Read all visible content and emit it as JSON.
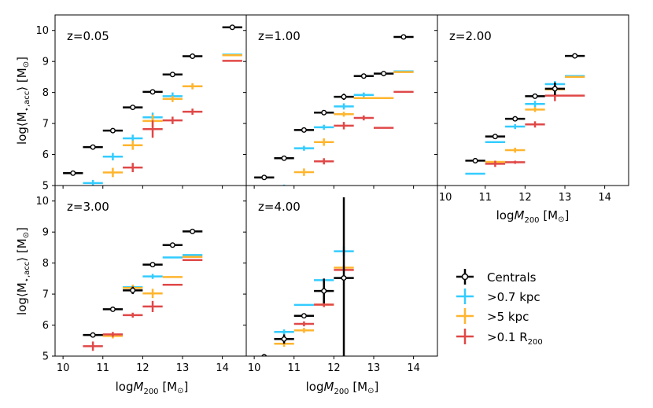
{
  "figure": {
    "ylabel": "log⟨M",
    "ylabel_sub": "⋆,acc",
    "ylabel_end": "⟩ [M",
    "ylabel_sun": "⊙",
    "ylabel_close": "]",
    "xlabel_main": "log",
    "xlabel_M": "M",
    "xlabel_sub": "200",
    "xlabel_unit": " [M",
    "xlabel_sun": "⊙",
    "xlabel_close": "]"
  },
  "legend": {
    "entries": [
      {
        "label": "Centrals",
        "color": "#000000"
      },
      {
        "label": ">0.7 kpc",
        "color": "#33ccff"
      },
      {
        "label": ">5 kpc",
        "color": "#ffb52e"
      },
      {
        "label": ">0.1 R",
        "sub": "200",
        "color": "#e04848"
      }
    ]
  },
  "chart_data": {
    "type": "scatter",
    "xlim": [
      9.8,
      14.6
    ],
    "ylim": [
      5,
      10.5
    ],
    "xticks": [
      10,
      11,
      12,
      13,
      14
    ],
    "yticks": [
      5,
      6,
      7,
      8,
      9,
      10
    ],
    "colors": {
      "centrals": "#000000",
      "kpc07": "#33ccff",
      "kpc5": "#ffb52e",
      "r200": "#e04848"
    },
    "panels": [
      {
        "label": "z=0.05",
        "series": [
          {
            "name": "Centrals",
            "key": "centrals",
            "points": [
              {
                "x": 10.25,
                "y": 5.4,
                "xerr": 0.25,
                "yerr": 0
              },
              {
                "x": 10.75,
                "y": 6.24,
                "xerr": 0.25,
                "yerr": 0
              },
              {
                "x": 11.25,
                "y": 6.77,
                "xerr": 0.25,
                "yerr": 0
              },
              {
                "x": 11.75,
                "y": 7.52,
                "xerr": 0.25,
                "yerr": 0
              },
              {
                "x": 12.25,
                "y": 8.02,
                "xerr": 0.25,
                "yerr": 0
              },
              {
                "x": 12.75,
                "y": 8.58,
                "xerr": 0.25,
                "yerr": 0
              },
              {
                "x": 13.25,
                "y": 9.17,
                "xerr": 0.25,
                "yerr": 0
              },
              {
                "x": 14.25,
                "y": 10.1,
                "xerr": 0.25,
                "yerr": 0
              }
            ]
          },
          {
            "name": ">0.7 kpc",
            "key": "kpc07",
            "points": [
              {
                "x": 10.75,
                "y": 5.08,
                "xerr": 0.25,
                "yerr": 0.1
              },
              {
                "x": 11.25,
                "y": 5.93,
                "xerr": 0.25,
                "yerr": 0.12
              },
              {
                "x": 11.75,
                "y": 6.52,
                "xerr": 0.25,
                "yerr": 0.12
              },
              {
                "x": 12.25,
                "y": 7.2,
                "xerr": 0.25,
                "yerr": 0.15
              },
              {
                "x": 12.75,
                "y": 7.88,
                "xerr": 0.25,
                "yerr": 0.12
              },
              {
                "x": 13.25,
                "y": 8.2,
                "xerr": 0.25,
                "yerr": 0.08
              },
              {
                "x": 14.25,
                "y": 9.22,
                "xerr": 0.25,
                "yerr": 0
              }
            ]
          },
          {
            "name": ">5 kpc",
            "key": "kpc5",
            "points": [
              {
                "x": 11.25,
                "y": 5.42,
                "xerr": 0.25,
                "yerr": 0.15
              },
              {
                "x": 11.75,
                "y": 6.3,
                "xerr": 0.25,
                "yerr": 0.15
              },
              {
                "x": 12.25,
                "y": 7.08,
                "xerr": 0.25,
                "yerr": 0.2
              },
              {
                "x": 12.75,
                "y": 7.79,
                "xerr": 0.25,
                "yerr": 0.1
              },
              {
                "x": 13.25,
                "y": 8.2,
                "xerr": 0.25,
                "yerr": 0.1
              },
              {
                "x": 14.25,
                "y": 9.2,
                "xerr": 0.25,
                "yerr": 0
              }
            ]
          },
          {
            "name": ">0.1 R200",
            "key": "r200",
            "points": [
              {
                "x": 11.75,
                "y": 5.58,
                "xerr": 0.25,
                "yerr": 0.15
              },
              {
                "x": 12.25,
                "y": 6.82,
                "xerr": 0.25,
                "yerr": 0.28
              },
              {
                "x": 12.75,
                "y": 7.1,
                "xerr": 0.25,
                "yerr": 0.12
              },
              {
                "x": 13.25,
                "y": 7.38,
                "xerr": 0.25,
                "yerr": 0.1
              },
              {
                "x": 14.25,
                "y": 9.02,
                "xerr": 0.25,
                "yerr": 0
              }
            ]
          }
        ]
      },
      {
        "label": "z=1.00",
        "series": [
          {
            "name": "Centrals",
            "key": "centrals",
            "points": [
              {
                "x": 10.25,
                "y": 5.26,
                "xerr": 0.25,
                "yerr": 0
              },
              {
                "x": 10.75,
                "y": 5.88,
                "xerr": 0.25,
                "yerr": 0
              },
              {
                "x": 11.25,
                "y": 6.79,
                "xerr": 0.25,
                "yerr": 0
              },
              {
                "x": 11.75,
                "y": 7.35,
                "xerr": 0.25,
                "yerr": 0
              },
              {
                "x": 12.25,
                "y": 7.86,
                "xerr": 0.25,
                "yerr": 0.1
              },
              {
                "x": 12.75,
                "y": 8.53,
                "xerr": 0.25,
                "yerr": 0
              },
              {
                "x": 13.25,
                "y": 8.61,
                "xerr": 0.25,
                "yerr": 0
              },
              {
                "x": 13.75,
                "y": 9.79,
                "xerr": 0.25,
                "yerr": 0
              }
            ]
          },
          {
            "name": ">0.7 kpc",
            "key": "kpc07",
            "points": [
              {
                "x": 10.75,
                "y": 4.98,
                "xerr": 0.25,
                "yerr": 0.05
              },
              {
                "x": 11.25,
                "y": 6.2,
                "xerr": 0.25,
                "yerr": 0.08
              },
              {
                "x": 11.75,
                "y": 6.88,
                "xerr": 0.25,
                "yerr": 0.08
              },
              {
                "x": 12.25,
                "y": 7.55,
                "xerr": 0.25,
                "yerr": 0.1
              },
              {
                "x": 12.75,
                "y": 7.92,
                "xerr": 0.25,
                "yerr": 0.08
              },
              {
                "x": 13.75,
                "y": 8.68,
                "xerr": 0.25,
                "yerr": 0
              }
            ]
          },
          {
            "name": ">5 kpc",
            "key": "kpc5",
            "points": [
              {
                "x": 11.25,
                "y": 5.43,
                "xerr": 0.25,
                "yerr": 0.12
              },
              {
                "x": 11.75,
                "y": 6.4,
                "xerr": 0.25,
                "yerr": 0.12
              },
              {
                "x": 12.25,
                "y": 7.3,
                "xerr": 0.25,
                "yerr": 0.08
              },
              {
                "x": 12.75,
                "y": 7.82,
                "xerr": 0.25,
                "yerr": 0
              },
              {
                "x": 13.25,
                "y": 7.82,
                "xerr": 0.25,
                "yerr": 0
              },
              {
                "x": 13.75,
                "y": 8.66,
                "xerr": 0.25,
                "yerr": 0
              }
            ]
          },
          {
            "name": ">0.1 R200",
            "key": "r200",
            "points": [
              {
                "x": 11.75,
                "y": 5.78,
                "xerr": 0.25,
                "yerr": 0.1
              },
              {
                "x": 12.25,
                "y": 6.93,
                "xerr": 0.25,
                "yerr": 0.12
              },
              {
                "x": 12.75,
                "y": 7.18,
                "xerr": 0.25,
                "yerr": 0.08
              },
              {
                "x": 13.25,
                "y": 6.86,
                "xerr": 0.25,
                "yerr": 0
              },
              {
                "x": 13.75,
                "y": 8.02,
                "xerr": 0.25,
                "yerr": 0
              }
            ]
          }
        ]
      },
      {
        "label": "z=2.00",
        "series": [
          {
            "name": "Centrals",
            "key": "centrals",
            "points": [
              {
                "x": 10.75,
                "y": 5.8,
                "xerr": 0.25,
                "yerr": 0
              },
              {
                "x": 11.25,
                "y": 6.58,
                "xerr": 0.25,
                "yerr": 0
              },
              {
                "x": 11.75,
                "y": 7.15,
                "xerr": 0.25,
                "yerr": 0
              },
              {
                "x": 12.25,
                "y": 7.88,
                "xerr": 0.25,
                "yerr": 0
              },
              {
                "x": 12.75,
                "y": 8.12,
                "xerr": 0.25,
                "yerr": 0.2
              },
              {
                "x": 13.25,
                "y": 9.18,
                "xerr": 0.25,
                "yerr": 0
              }
            ]
          },
          {
            "name": ">0.7 kpc",
            "key": "kpc07",
            "points": [
              {
                "x": 10.75,
                "y": 5.38,
                "xerr": 0.25,
                "yerr": 0
              },
              {
                "x": 11.25,
                "y": 6.4,
                "xerr": 0.25,
                "yerr": 0
              },
              {
                "x": 11.75,
                "y": 6.9,
                "xerr": 0.25,
                "yerr": 0.08
              },
              {
                "x": 12.25,
                "y": 7.63,
                "xerr": 0.25,
                "yerr": 0.1
              },
              {
                "x": 12.75,
                "y": 8.27,
                "xerr": 0.25,
                "yerr": 0.1
              },
              {
                "x": 13.25,
                "y": 8.53,
                "xerr": 0.25,
                "yerr": 0
              }
            ]
          },
          {
            "name": ">5 kpc",
            "key": "kpc5",
            "points": [
              {
                "x": 11.25,
                "y": 5.76,
                "xerr": 0.25,
                "yerr": 0
              },
              {
                "x": 11.75,
                "y": 6.14,
                "xerr": 0.25,
                "yerr": 0.08
              },
              {
                "x": 12.25,
                "y": 7.45,
                "xerr": 0.25,
                "yerr": 0.08
              },
              {
                "x": 12.75,
                "y": 8.1,
                "xerr": 0.25,
                "yerr": 0.1
              },
              {
                "x": 13.25,
                "y": 8.5,
                "xerr": 0.25,
                "yerr": 0
              }
            ]
          },
          {
            "name": ">0.1 R200",
            "key": "r200",
            "points": [
              {
                "x": 11.25,
                "y": 5.7,
                "xerr": 0.25,
                "yerr": 0.1
              },
              {
                "x": 11.75,
                "y": 5.75,
                "xerr": 0.25,
                "yerr": 0.05
              },
              {
                "x": 12.25,
                "y": 6.97,
                "xerr": 0.25,
                "yerr": 0.1
              },
              {
                "x": 12.75,
                "y": 7.9,
                "xerr": 0.25,
                "yerr": 0.18
              },
              {
                "x": 13.25,
                "y": 7.9,
                "xerr": 0.25,
                "yerr": 0
              }
            ]
          }
        ]
      },
      {
        "label": "z=3.00",
        "series": [
          {
            "name": "Centrals",
            "key": "centrals",
            "points": [
              {
                "x": 10.75,
                "y": 5.68,
                "xerr": 0.25,
                "yerr": 0
              },
              {
                "x": 11.25,
                "y": 6.51,
                "xerr": 0.25,
                "yerr": 0
              },
              {
                "x": 11.75,
                "y": 7.12,
                "xerr": 0.25,
                "yerr": 0.12
              },
              {
                "x": 12.25,
                "y": 7.95,
                "xerr": 0.25,
                "yerr": 0
              },
              {
                "x": 12.75,
                "y": 8.58,
                "xerr": 0.25,
                "yerr": 0
              },
              {
                "x": 13.25,
                "y": 9.02,
                "xerr": 0.25,
                "yerr": 0
              }
            ]
          },
          {
            "name": ">0.7 kpc",
            "key": "kpc07",
            "points": [
              {
                "x": 11.25,
                "y": 5.68,
                "xerr": 0.25,
                "yerr": 0
              },
              {
                "x": 11.75,
                "y": 7.22,
                "xerr": 0.25,
                "yerr": 0.08
              },
              {
                "x": 12.25,
                "y": 7.57,
                "xerr": 0.25,
                "yerr": 0.08
              },
              {
                "x": 12.75,
                "y": 8.18,
                "xerr": 0.25,
                "yerr": 0
              },
              {
                "x": 13.25,
                "y": 8.26,
                "xerr": 0.25,
                "yerr": 0
              }
            ]
          },
          {
            "name": ">5 kpc",
            "key": "kpc5",
            "points": [
              {
                "x": 11.25,
                "y": 5.65,
                "xerr": 0.25,
                "yerr": 0.08
              },
              {
                "x": 11.75,
                "y": 7.2,
                "xerr": 0.25,
                "yerr": 0.1
              },
              {
                "x": 12.25,
                "y": 7.02,
                "xerr": 0.25,
                "yerr": 0.15
              },
              {
                "x": 12.75,
                "y": 7.55,
                "xerr": 0.25,
                "yerr": 0
              },
              {
                "x": 13.25,
                "y": 8.2,
                "xerr": 0.25,
                "yerr": 0
              }
            ]
          },
          {
            "name": ">0.1 R200",
            "key": "r200",
            "points": [
              {
                "x": 10.75,
                "y": 5.32,
                "xerr": 0.25,
                "yerr": 0.15
              },
              {
                "x": 11.25,
                "y": 5.7,
                "xerr": 0.25,
                "yerr": 0.08
              },
              {
                "x": 11.75,
                "y": 6.32,
                "xerr": 0.25,
                "yerr": 0.08
              },
              {
                "x": 12.25,
                "y": 6.6,
                "xerr": 0.25,
                "yerr": 0.18
              },
              {
                "x": 12.75,
                "y": 7.3,
                "xerr": 0.25,
                "yerr": 0
              },
              {
                "x": 13.25,
                "y": 8.1,
                "xerr": 0.25,
                "yerr": 0
              }
            ]
          }
        ]
      },
      {
        "label": "z=4.00",
        "series": [
          {
            "name": "Centrals",
            "key": "centrals",
            "points": [
              {
                "x": 10.25,
                "y": 4.98,
                "xerr": 0,
                "yerr": 0
              },
              {
                "x": 10.75,
                "y": 5.55,
                "xerr": 0.25,
                "yerr": 0.15
              },
              {
                "x": 11.25,
                "y": 6.3,
                "xerr": 0.25,
                "yerr": 0
              },
              {
                "x": 11.75,
                "y": 7.1,
                "xerr": 0.25,
                "yerr": 0.4
              },
              {
                "x": 12.25,
                "y": 7.52,
                "xerr": 0.25,
                "yerr": 2.6
              }
            ]
          },
          {
            "name": ">0.7 kpc",
            "key": "kpc07",
            "points": [
              {
                "x": 10.75,
                "y": 5.78,
                "xerr": 0.25,
                "yerr": 0.08
              },
              {
                "x": 11.25,
                "y": 6.65,
                "xerr": 0.25,
                "yerr": 0
              },
              {
                "x": 11.75,
                "y": 7.45,
                "xerr": 0.25,
                "yerr": 0
              },
              {
                "x": 12.25,
                "y": 8.38,
                "xerr": 0.25,
                "yerr": 0.15
              }
            ]
          },
          {
            "name": ">5 kpc",
            "key": "kpc5",
            "points": [
              {
                "x": 10.75,
                "y": 5.4,
                "xerr": 0.25,
                "yerr": 0.1
              },
              {
                "x": 11.25,
                "y": 5.83,
                "xerr": 0.25,
                "yerr": 0.08
              },
              {
                "x": 11.75,
                "y": 6.66,
                "xerr": 0.25,
                "yerr": 0
              },
              {
                "x": 12.25,
                "y": 7.85,
                "xerr": 0.25,
                "yerr": 0.08
              }
            ]
          },
          {
            "name": ">0.1 R200",
            "key": "r200",
            "points": [
              {
                "x": 11.25,
                "y": 6.04,
                "xerr": 0.25,
                "yerr": 0.08
              },
              {
                "x": 11.75,
                "y": 6.66,
                "xerr": 0.25,
                "yerr": 0.08
              },
              {
                "x": 12.25,
                "y": 7.78,
                "xerr": 0.25,
                "yerr": 0
              }
            ]
          }
        ]
      }
    ]
  }
}
